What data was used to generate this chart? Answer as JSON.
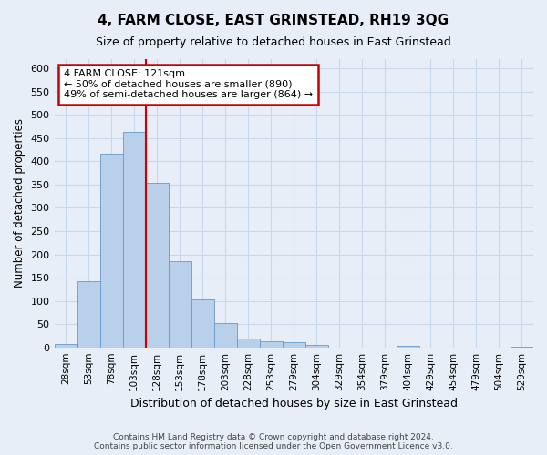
{
  "title": "4, FARM CLOSE, EAST GRINSTEAD, RH19 3QG",
  "subtitle": "Size of property relative to detached houses in East Grinstead",
  "xlabel": "Distribution of detached houses by size in East Grinstead",
  "ylabel": "Number of detached properties",
  "footer1": "Contains HM Land Registry data © Crown copyright and database right 2024.",
  "footer2": "Contains public sector information licensed under the Open Government Licence v3.0.",
  "bar_labels": [
    "28sqm",
    "53sqm",
    "78sqm",
    "103sqm",
    "128sqm",
    "153sqm",
    "178sqm",
    "203sqm",
    "228sqm",
    "253sqm",
    "279sqm",
    "304sqm",
    "329sqm",
    "354sqm",
    "379sqm",
    "404sqm",
    "429sqm",
    "454sqm",
    "479sqm",
    "504sqm",
    "529sqm"
  ],
  "bar_values": [
    8,
    143,
    416,
    463,
    353,
    185,
    103,
    53,
    18,
    13,
    11,
    5,
    0,
    0,
    0,
    3,
    0,
    0,
    0,
    0,
    2
  ],
  "bar_color": "#b8d0ea",
  "bar_edge_color": "#6699cc",
  "vline_color": "#cc0000",
  "annotation_title": "4 FARM CLOSE: 121sqm",
  "annotation_line1": "← 50% of detached houses are smaller (890)",
  "annotation_line2": "49% of semi-detached houses are larger (864) →",
  "annotation_box_facecolor": "#ffffff",
  "annotation_box_edgecolor": "#cc0000",
  "ylim": [
    0,
    620
  ],
  "yticks": [
    0,
    50,
    100,
    150,
    200,
    250,
    300,
    350,
    400,
    450,
    500,
    550,
    600
  ],
  "grid_color": "#c8d8ec",
  "bg_color": "#e8eef8",
  "title_fontsize": 11,
  "subtitle_fontsize": 9
}
